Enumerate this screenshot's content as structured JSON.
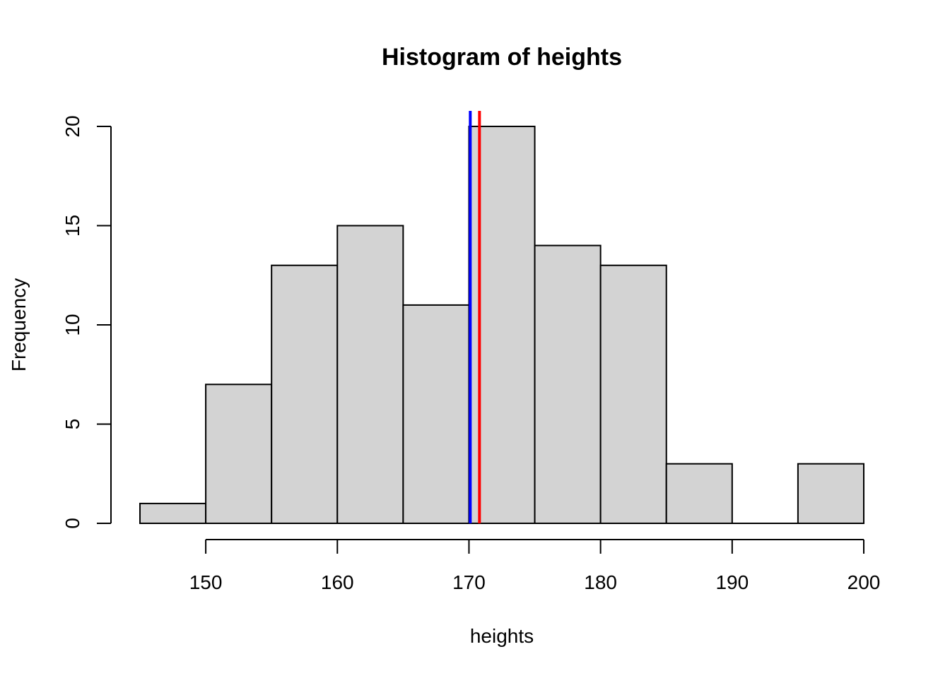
{
  "chart_data": {
    "type": "bar",
    "title": "Histogram of heights",
    "xlabel": "heights",
    "ylabel": "Frequency",
    "bins": [
      {
        "start": 145,
        "end": 150,
        "count": 1
      },
      {
        "start": 150,
        "end": 155,
        "count": 7
      },
      {
        "start": 155,
        "end": 160,
        "count": 13
      },
      {
        "start": 160,
        "end": 165,
        "count": 15
      },
      {
        "start": 165,
        "end": 170,
        "count": 11
      },
      {
        "start": 170,
        "end": 175,
        "count": 20
      },
      {
        "start": 175,
        "end": 180,
        "count": 14
      },
      {
        "start": 180,
        "end": 185,
        "count": 13
      },
      {
        "start": 185,
        "end": 190,
        "count": 3
      },
      {
        "start": 190,
        "end": 195,
        "count": 0
      },
      {
        "start": 195,
        "end": 200,
        "count": 3
      }
    ],
    "xlim": [
      145,
      200
    ],
    "ylim": [
      0,
      20
    ],
    "xticks": [
      150,
      160,
      170,
      180,
      190,
      200
    ],
    "yticks": [
      0,
      5,
      10,
      15,
      20
    ],
    "vlines": [
      {
        "x": 170.1,
        "color": "#0000ff"
      },
      {
        "x": 170.8,
        "color": "#ff0000"
      }
    ],
    "bar_fill": "#d3d3d3",
    "grid": false,
    "legend": "none"
  }
}
